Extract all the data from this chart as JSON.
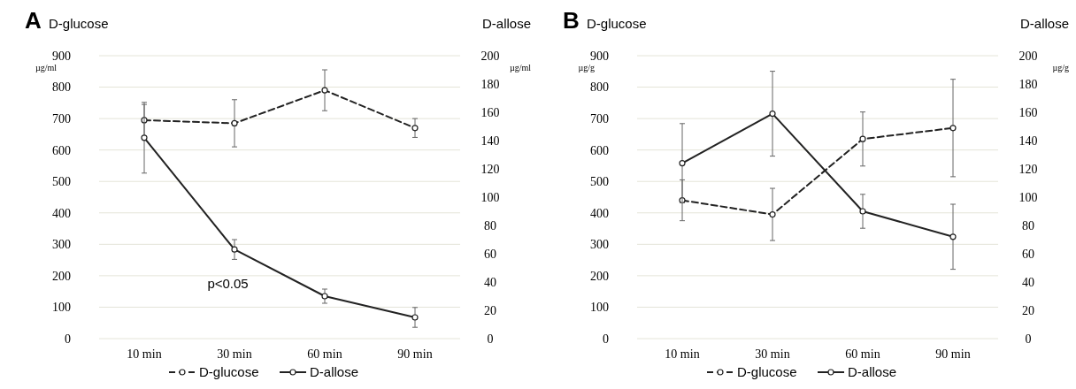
{
  "chart_data": [
    {
      "type": "line",
      "title": "A",
      "ylabel": "D-glucose",
      "y2label": "D-allose",
      "annotations": [
        "µg/ml",
        "µg/ml",
        "p<0.05"
      ],
      "categories": [
        "10 min",
        "30 min",
        "60 min",
        "90 min"
      ],
      "ylim": [
        0,
        900
      ],
      "yticks": [
        0,
        100,
        200,
        300,
        400,
        500,
        600,
        700,
        800,
        900
      ],
      "y2lim": [
        0,
        200
      ],
      "y2ticks": [
        0,
        20,
        40,
        60,
        80,
        100,
        120,
        140,
        160,
        180,
        200
      ],
      "grid": "y",
      "legend": "bottom",
      "marker": "circle",
      "series": [
        {
          "name": "D-glucose",
          "color": "#222222",
          "line_style": "dashed",
          "values": [
            695,
            685,
            790,
            670
          ],
          "errors": [
            50,
            75,
            65,
            30
          ]
        },
        {
          "name": "D-allose",
          "color": "#222222",
          "line_style": "solid",
          "axis": "y2",
          "values": [
            142,
            63,
            30,
            15
          ],
          "errors": [
            25,
            7,
            5,
            7
          ]
        }
      ]
    },
    {
      "type": "line",
      "title": "B",
      "ylabel": "D-glucose",
      "y2label": "D-allose",
      "annotations": [
        "µg/g",
        "µg/g"
      ],
      "categories": [
        "10 min",
        "30 min",
        "60 min",
        "90 min"
      ],
      "ylim": [
        0,
        900
      ],
      "yticks": [
        0,
        100,
        200,
        300,
        400,
        500,
        600,
        700,
        800,
        900
      ],
      "y2lim": [
        0,
        200
      ],
      "y2ticks": [
        0,
        20,
        40,
        60,
        80,
        100,
        120,
        140,
        160,
        180,
        200
      ],
      "grid": "y",
      "legend": "bottom",
      "marker": "circle",
      "series": [
        {
          "name": "D-glucose",
          "color": "#222222",
          "line_style": "dashed",
          "values": [
            440,
            395,
            635,
            670
          ],
          "errors": [
            65,
            83,
            86,
            155
          ]
        },
        {
          "name": "D-allose",
          "color": "#222222",
          "line_style": "solid",
          "axis": "y2",
          "values": [
            124,
            159,
            90,
            72
          ],
          "errors": [
            28,
            30,
            12,
            23
          ]
        }
      ]
    }
  ]
}
